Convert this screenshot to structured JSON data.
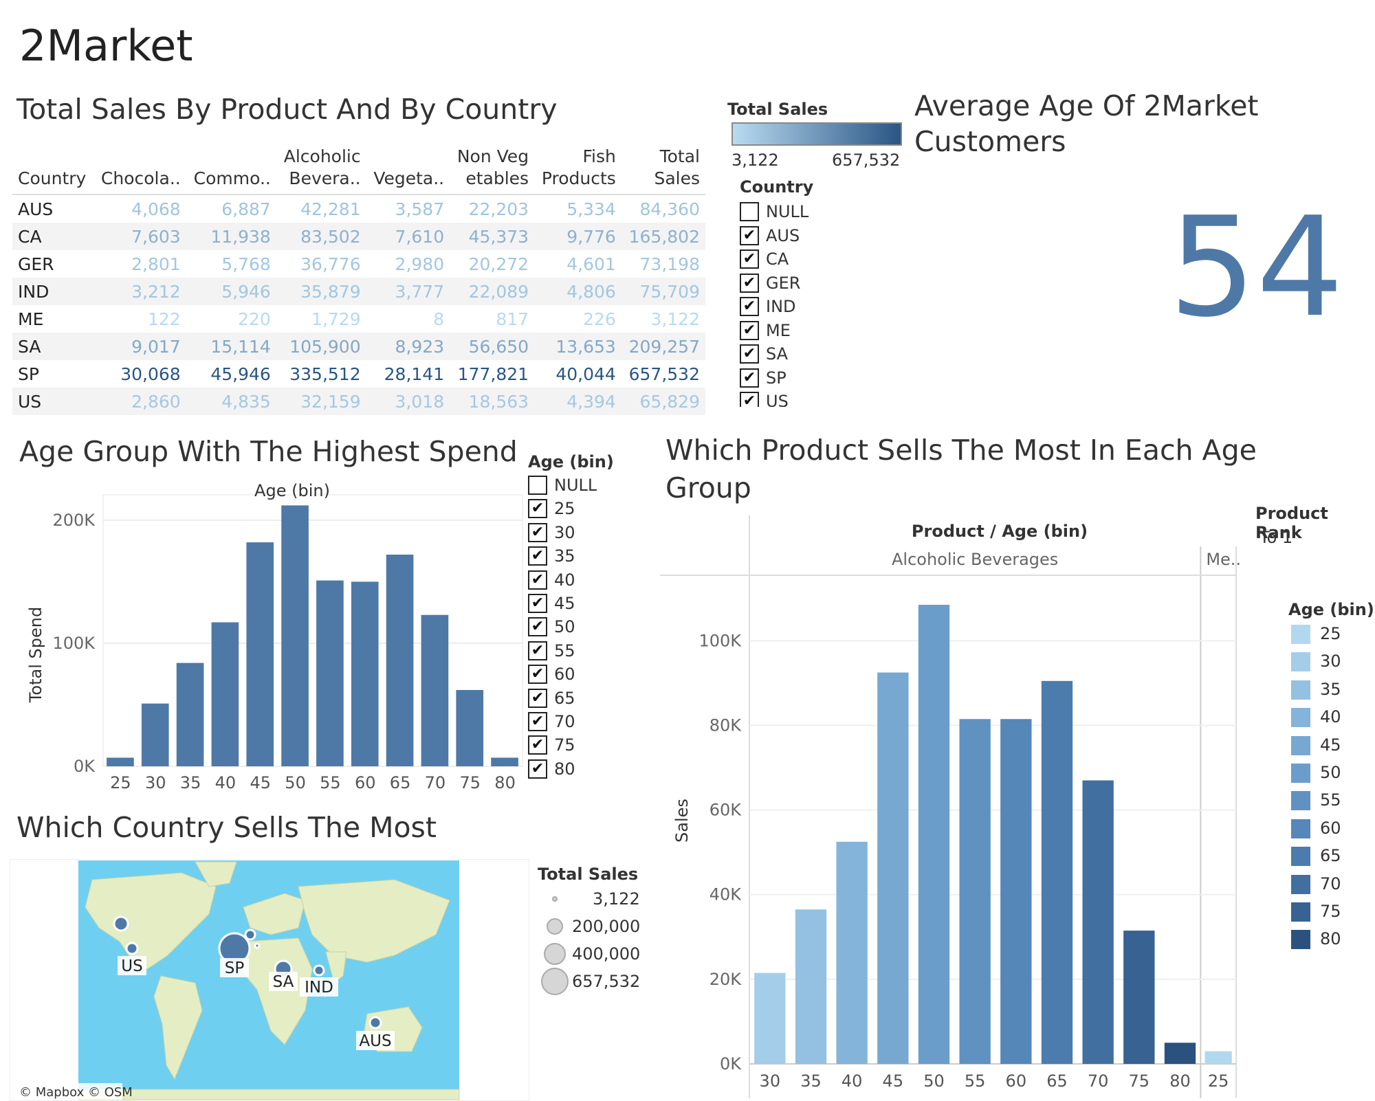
{
  "dashboard_title": "2Market",
  "table": {
    "title": "Total Sales By Product And By Country",
    "headers": [
      [
        "",
        "Country"
      ],
      [
        "",
        "Chocola.."
      ],
      [
        "",
        "Commo.."
      ],
      [
        "Alcoholic",
        "Bevera.."
      ],
      [
        "",
        "Vegeta.."
      ],
      [
        "Non Veg",
        "etables"
      ],
      [
        "Fish",
        "Products"
      ],
      [
        "Total",
        "Sales"
      ]
    ],
    "rows": [
      {
        "country": "AUS",
        "values": [
          "4,068",
          "6,887",
          "42,281",
          "3,587",
          "22,203",
          "5,334",
          "84,360"
        ]
      },
      {
        "country": "CA",
        "values": [
          "7,603",
          "11,938",
          "83,502",
          "7,610",
          "45,373",
          "9,776",
          "165,802"
        ]
      },
      {
        "country": "GER",
        "values": [
          "2,801",
          "5,768",
          "36,776",
          "2,980",
          "20,272",
          "4,601",
          "73,198"
        ]
      },
      {
        "country": "IND",
        "values": [
          "3,212",
          "5,946",
          "35,879",
          "3,777",
          "22,089",
          "4,806",
          "75,709"
        ]
      },
      {
        "country": "ME",
        "values": [
          "122",
          "220",
          "1,729",
          "8",
          "817",
          "226",
          "3,122"
        ]
      },
      {
        "country": "SA",
        "values": [
          "9,017",
          "15,114",
          "105,900",
          "8,923",
          "56,650",
          "13,653",
          "209,257"
        ]
      },
      {
        "country": "SP",
        "values": [
          "30,068",
          "45,946",
          "335,512",
          "28,141",
          "177,821",
          "40,044",
          "657,532"
        ]
      },
      {
        "country": "US",
        "values": [
          "2,860",
          "4,835",
          "32,159",
          "3,018",
          "18,563",
          "4,394",
          "65,829"
        ]
      }
    ]
  },
  "total_sales_legend": {
    "title": "Total Sales",
    "min": "3,122",
    "max": "657,532",
    "color_low": "#b9dbf1",
    "color_high": "#2a5584"
  },
  "country_filter": {
    "title": "Country",
    "items": [
      {
        "label": "NULL",
        "checked": false
      },
      {
        "label": "AUS",
        "checked": true
      },
      {
        "label": "CA",
        "checked": true
      },
      {
        "label": "GER",
        "checked": true
      },
      {
        "label": "IND",
        "checked": true
      },
      {
        "label": "ME",
        "checked": true
      },
      {
        "label": "SA",
        "checked": true
      },
      {
        "label": "SP",
        "checked": true
      },
      {
        "label": "US",
        "checked": true
      }
    ]
  },
  "average_age": {
    "title_line1": "Average Age Of 2Market",
    "title_line2": "Customers",
    "value": "54"
  },
  "age_filter": {
    "title": "Age (bin)",
    "items": [
      {
        "label": "NULL",
        "checked": false
      },
      {
        "label": "25",
        "checked": true
      },
      {
        "label": "30",
        "checked": true
      },
      {
        "label": "35",
        "checked": true
      },
      {
        "label": "40",
        "checked": true
      },
      {
        "label": "45",
        "checked": true
      },
      {
        "label": "50",
        "checked": true
      },
      {
        "label": "55",
        "checked": true
      },
      {
        "label": "60",
        "checked": true
      },
      {
        "label": "65",
        "checked": true
      },
      {
        "label": "70",
        "checked": true
      },
      {
        "label": "75",
        "checked": true
      },
      {
        "label": "80",
        "checked": true
      }
    ]
  },
  "map": {
    "title": "Which Country Sells The Most",
    "attribution": "© Mapbox © OSM",
    "labels": [
      "US",
      "SP",
      "SA",
      "IND",
      "AUS"
    ],
    "legend_title": "Total Sales",
    "legend_items": [
      "3,122",
      "200,000",
      "400,000",
      "657,532"
    ],
    "land_color": "#e4edc4",
    "water_color": "#6fcff0"
  },
  "product_rank": {
    "title": "Product Rank",
    "value": "To 1"
  },
  "age_legend": {
    "title": "Age (bin)",
    "items": [
      {
        "label": "25",
        "color": "#b2d8ef"
      },
      {
        "label": "30",
        "color": "#a4cde9"
      },
      {
        "label": "35",
        "color": "#94c1e2"
      },
      {
        "label": "40",
        "color": "#84b4da"
      },
      {
        "label": "45",
        "color": "#76a8d2"
      },
      {
        "label": "50",
        "color": "#6a9dca"
      },
      {
        "label": "55",
        "color": "#5f92c1"
      },
      {
        "label": "60",
        "color": "#5587b8"
      },
      {
        "label": "65",
        "color": "#4b7cad"
      },
      {
        "label": "70",
        "color": "#416fa0"
      },
      {
        "label": "75",
        "color": "#376291"
      },
      {
        "label": "80",
        "color": "#2b527f"
      }
    ]
  },
  "chart_data": [
    {
      "type": "bar",
      "title": "Age Group With The Highest Spend",
      "xlabel": "Age (bin)",
      "ylabel": "Total Spend",
      "categories": [
        "25",
        "30",
        "35",
        "40",
        "45",
        "50",
        "55",
        "60",
        "65",
        "70",
        "75",
        "80"
      ],
      "values": [
        7000,
        51000,
        84000,
        117000,
        182000,
        212000,
        151000,
        150000,
        172000,
        123000,
        62000,
        7000
      ],
      "ylim": [
        0,
        215000
      ],
      "yticks": [
        "0K",
        "100K",
        "200K"
      ],
      "ytick_values": [
        0,
        100000,
        200000
      ],
      "color": "#4e79a7",
      "grid": true
    },
    {
      "type": "bar",
      "title_line1": "Which Product Sells The Most In Each Age",
      "title_line2": "Group",
      "header": "Product  /  Age (bin)",
      "panels": [
        "Alcoholic Beverages",
        "Me.."
      ],
      "xlabel": "",
      "ylabel": "Sales",
      "series": [
        {
          "panel": "Alcoholic Beverages",
          "categories": [
            "30",
            "35",
            "40",
            "45",
            "50",
            "55",
            "60",
            "65",
            "70",
            "75",
            "80"
          ],
          "values": [
            21500,
            36500,
            52500,
            92500,
            108500,
            81500,
            81500,
            90500,
            67000,
            31500,
            5000
          ]
        },
        {
          "panel": "Me..",
          "categories": [
            "25"
          ],
          "values": [
            3000
          ]
        }
      ],
      "ylim": [
        0,
        115000
      ],
      "yticks": [
        "0K",
        "20K",
        "40K",
        "60K",
        "80K",
        "100K"
      ],
      "ytick_values": [
        0,
        20000,
        40000,
        60000,
        80000,
        100000
      ],
      "grid": true
    }
  ]
}
